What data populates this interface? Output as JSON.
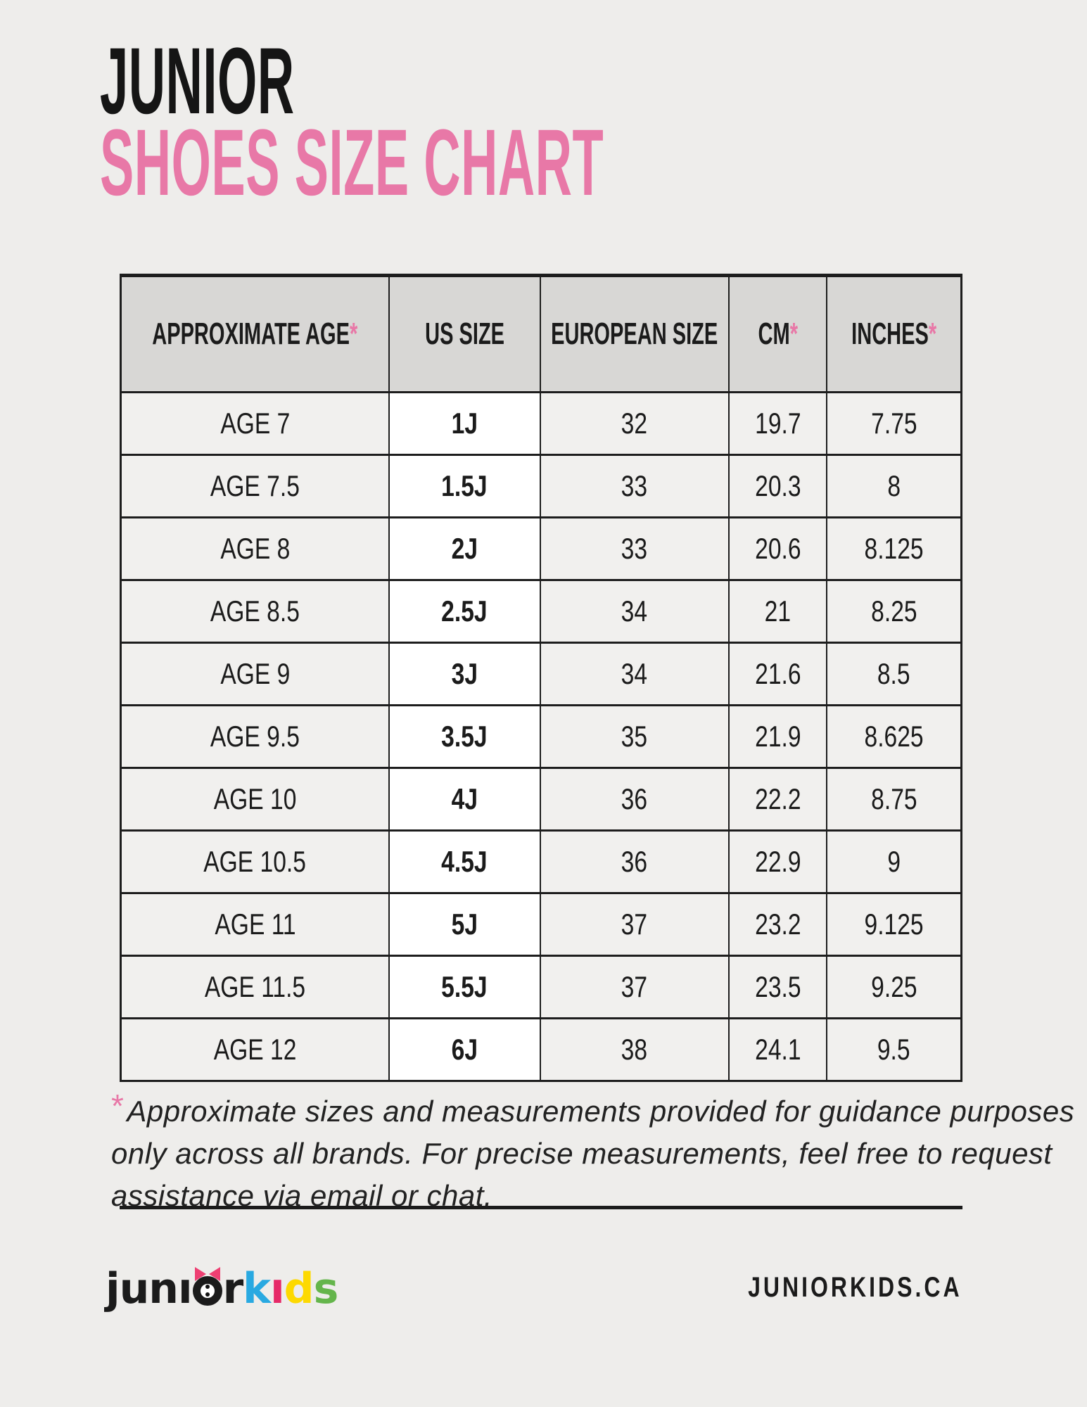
{
  "title": {
    "line1": "JUNIOR",
    "line2": "SHOES SIZE CHART"
  },
  "colors": {
    "accent_pink": "#e878a7",
    "page_bg": "#eeedeb",
    "header_bg": "#d8d7d5",
    "cell_bg": "#f1f0ee",
    "us_col_bg": "#ffffff",
    "border": "#1d1d1d",
    "logo_blue": "#29a9e1",
    "logo_pink": "#e62a68",
    "logo_yellow": "#fdd901",
    "logo_green": "#64b54b",
    "logo_bow_pink": "#ee3f72"
  },
  "table": {
    "headers": [
      {
        "label": "APPROXIMATE AGE",
        "star": "*"
      },
      {
        "label": "US SIZE",
        "star": ""
      },
      {
        "label": "EUROPEAN SIZE",
        "star": ""
      },
      {
        "label": "CM",
        "star": "*"
      },
      {
        "label": "INCHES",
        "star": "*"
      }
    ],
    "rows": [
      [
        "AGE 7",
        "1J",
        "32",
        "19.7",
        "7.75"
      ],
      [
        "AGE 7.5",
        "1.5J",
        "33",
        "20.3",
        "8"
      ],
      [
        "AGE 8",
        "2J",
        "33",
        "20.6",
        "8.125"
      ],
      [
        "AGE 8.5",
        "2.5J",
        "34",
        "21",
        "8.25"
      ],
      [
        "AGE 9",
        "3J",
        "34",
        "21.6",
        "8.5"
      ],
      [
        "AGE 9.5",
        "3.5J",
        "35",
        "21.9",
        "8.625"
      ],
      [
        "AGE 10",
        "4J",
        "36",
        "22.2",
        "8.75"
      ],
      [
        "AGE 10.5",
        "4.5J",
        "36",
        "22.9",
        "9"
      ],
      [
        "AGE 11",
        "5J",
        "37",
        "23.2",
        "9.125"
      ],
      [
        "AGE 11.5",
        "5.5J",
        "37",
        "23.5",
        "9.25"
      ],
      [
        "AGE 12",
        "6J",
        "38",
        "24.1",
        "9.5"
      ]
    ]
  },
  "footnote": {
    "star": "*",
    "lines": [
      "Approximate sizes and measurements provided for guidance purposes",
      "only across all brands. For precise measurements, feel free to request",
      "assistance via email or chat."
    ]
  },
  "footer": {
    "logo": {
      "seg_jun": "jun",
      "seg_i1": "ı",
      "seg_r": "r",
      "seg_k": "k",
      "seg_i2": "ı",
      "seg_d": "d",
      "seg_s": "s"
    },
    "website": "JUNIORKIDS.CA"
  }
}
